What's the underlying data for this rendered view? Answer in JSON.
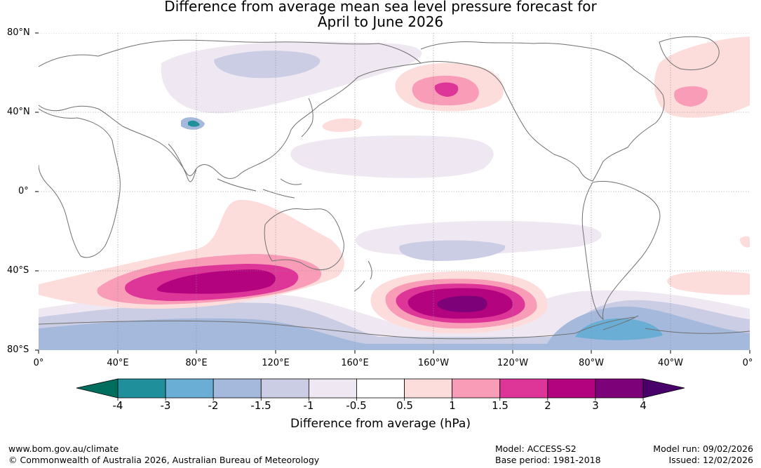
{
  "title": {
    "line1": "Difference from average mean sea level pressure forecast for",
    "line2": "April to June 2026"
  },
  "map": {
    "latitude_labels": [
      "80°N",
      "40°N",
      "0°",
      "40°S",
      "80°S"
    ],
    "longitude_labels": [
      "0°",
      "40°E",
      "80°E",
      "120°E",
      "160°E",
      "160°W",
      "120°W",
      "80°W",
      "40°W",
      "0°"
    ],
    "ocean_color": "#ffffff",
    "coast_color": "#707070"
  },
  "colorbar": {
    "title": "Difference from average (hPa)",
    "tick_labels": [
      "-4",
      "-3",
      "-2",
      "-1.5",
      "-1",
      "-0.5",
      "0.5",
      "1",
      "1.5",
      "2",
      "3",
      "4"
    ],
    "colors": [
      "#006e5e",
      "#1f8f9b",
      "#6aaed5",
      "#a4b9dc",
      "#cbcde4",
      "#efe8f2",
      "#ffffff",
      "#fddddc",
      "#f89cb7",
      "#dd3598",
      "#b4037f",
      "#7d0178",
      "#4a006a"
    ]
  },
  "footer": {
    "url": "www.bom.gov.au/climate",
    "copyright": "© Commonwealth of Australia 2026, Australian Bureau of Meteorology",
    "model": "Model: ACCESS-S2",
    "base_period": "Base period: 1981-2018",
    "model_run": "Model run: 09/02/2026",
    "issued": "Issued: 12/02/2026"
  }
}
